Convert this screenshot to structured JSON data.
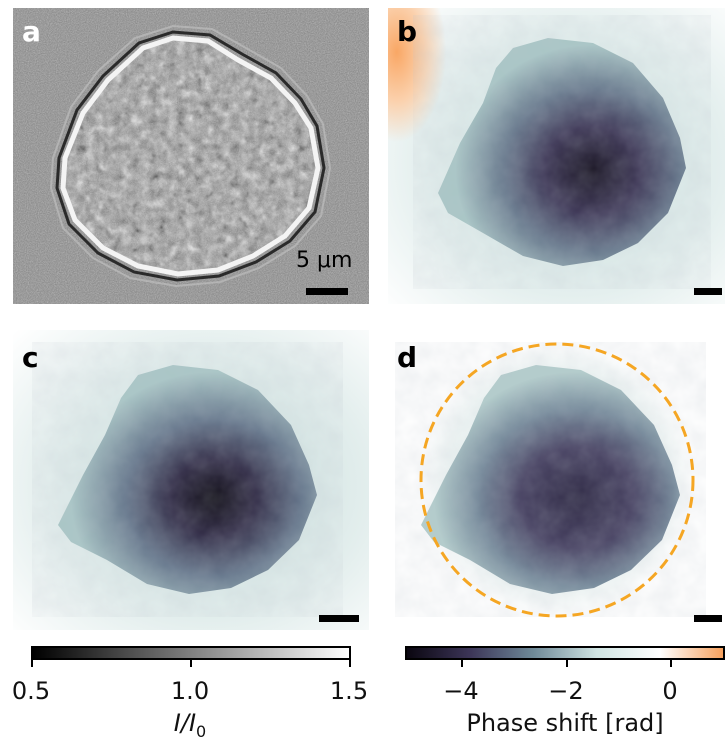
{
  "panels": {
    "a": {
      "label": "a",
      "scale_text": "5 μm"
    },
    "b": {
      "label": "b"
    },
    "c": {
      "label": "c"
    },
    "d": {
      "label": "d",
      "circle_color": "#f5a623"
    }
  },
  "colorbar_intensity": {
    "label_prefix": "I/I",
    "label_sub": "0",
    "ticks": [
      "0.5",
      "1.0",
      "1.5"
    ],
    "range": [
      0.5,
      1.5
    ],
    "colors": [
      "#000000",
      "#ffffff"
    ]
  },
  "colorbar_phase": {
    "label": "Phase shift [rad]",
    "ticks": [
      "−4",
      "−2",
      "0"
    ],
    "range": [
      -5.2,
      1.0
    ],
    "colors": [
      "#0a0610",
      "#3c3558",
      "#6f8a98",
      "#cfe4e2",
      "#ffffff",
      "#f7a15e"
    ]
  }
}
